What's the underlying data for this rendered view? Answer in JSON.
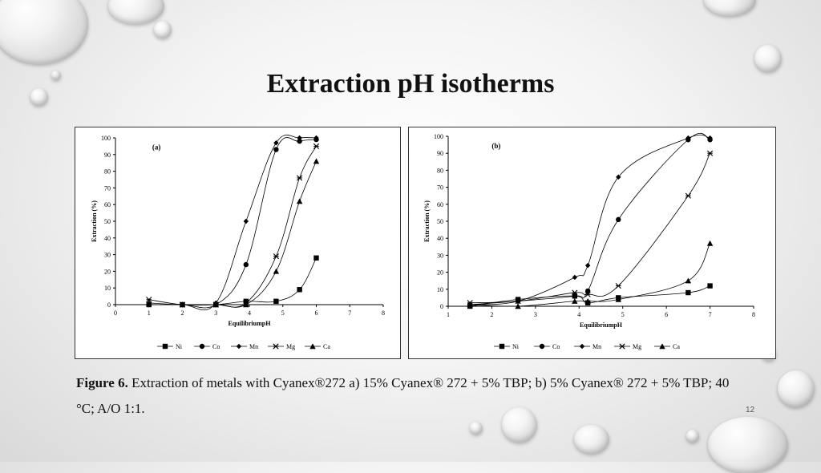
{
  "slide": {
    "title": "Extraction pH isotherms",
    "caption_bold": "Figure 6.",
    "caption_text": " Extraction of metals with Cyanex®272 a) 15% Cyanex® 272 + 5% TBP; b) 5% Cyanex® 272 + 5% TBP; 40 °C; A/O 1:1.",
    "page_number": "12"
  },
  "chart_data": [
    {
      "type": "line",
      "panel_label": "(a)",
      "xlabel": "EquilibriumpH",
      "ylabel": "Extraction (%)",
      "xlim": [
        0,
        8
      ],
      "ylim": [
        0,
        100
      ],
      "xticks": [
        0,
        1,
        2,
        3,
        4,
        5,
        6,
        7,
        8
      ],
      "yticks": [
        0,
        10,
        20,
        30,
        40,
        50,
        60,
        70,
        80,
        90,
        100
      ],
      "grid": false,
      "legend_position": "bottom",
      "series": [
        {
          "name": "Ni",
          "marker": "square",
          "x": [
            1,
            2,
            3,
            3.9,
            4.8,
            5.5,
            6
          ],
          "y": [
            0,
            0,
            0,
            2,
            2,
            9,
            28
          ]
        },
        {
          "name": "Co",
          "marker": "circle",
          "x": [
            1,
            2,
            3,
            3.9,
            4.8,
            5.5,
            6
          ],
          "y": [
            0,
            0,
            0,
            24,
            93,
            98,
            99
          ]
        },
        {
          "name": "Mn",
          "marker": "diamond",
          "x": [
            1,
            2,
            3,
            3.9,
            4.8,
            5.5,
            6
          ],
          "y": [
            0,
            0,
            1,
            50,
            97,
            100,
            100
          ]
        },
        {
          "name": "Mg",
          "marker": "star",
          "x": [
            1,
            2,
            3,
            3.9,
            4.8,
            5.5,
            6
          ],
          "y": [
            3,
            0,
            0,
            1,
            29,
            76,
            95
          ]
        },
        {
          "name": "Ca",
          "marker": "triangle",
          "x": [
            1,
            2,
            3,
            3.9,
            4.8,
            5.5,
            6
          ],
          "y": [
            1,
            0,
            0,
            0,
            20,
            62,
            86
          ]
        }
      ]
    },
    {
      "type": "line",
      "panel_label": "(b)",
      "xlabel": "EquilibriumpH",
      "ylabel": "Extraction (%)",
      "xlim": [
        1,
        8
      ],
      "ylim": [
        0,
        100
      ],
      "xticks": [
        1,
        2,
        3,
        4,
        5,
        6,
        7,
        8
      ],
      "yticks": [
        0,
        10,
        20,
        30,
        40,
        50,
        60,
        70,
        80,
        90,
        100
      ],
      "grid": false,
      "legend_position": "bottom",
      "series": [
        {
          "name": "Ni",
          "marker": "square",
          "x": [
            1.5,
            2.6,
            3.9,
            4.2,
            4.9,
            6.5,
            7
          ],
          "y": [
            0,
            4,
            6,
            2,
            5,
            8,
            12
          ]
        },
        {
          "name": "Co",
          "marker": "circle",
          "x": [
            1.5,
            2.6,
            3.9,
            4.2,
            4.9,
            6.5,
            7
          ],
          "y": [
            1,
            3,
            6,
            9,
            51,
            98,
            98
          ]
        },
        {
          "name": "Mn",
          "marker": "diamond",
          "x": [
            1.5,
            2.6,
            3.9,
            4.2,
            4.9,
            6.5,
            7
          ],
          "y": [
            1,
            3,
            17,
            24,
            76,
            99,
            99
          ]
        },
        {
          "name": "Mg",
          "marker": "star",
          "x": [
            1.5,
            2.6,
            3.9,
            4.2,
            4.9,
            6.5,
            7
          ],
          "y": [
            2,
            3,
            8,
            7,
            12,
            65,
            90
          ]
        },
        {
          "name": "Ca",
          "marker": "triangle",
          "x": [
            1.5,
            2.6,
            3.9,
            4.2,
            4.9,
            6.5,
            7
          ],
          "y": [
            1,
            0,
            3,
            3,
            4,
            15,
            37
          ]
        }
      ]
    }
  ]
}
